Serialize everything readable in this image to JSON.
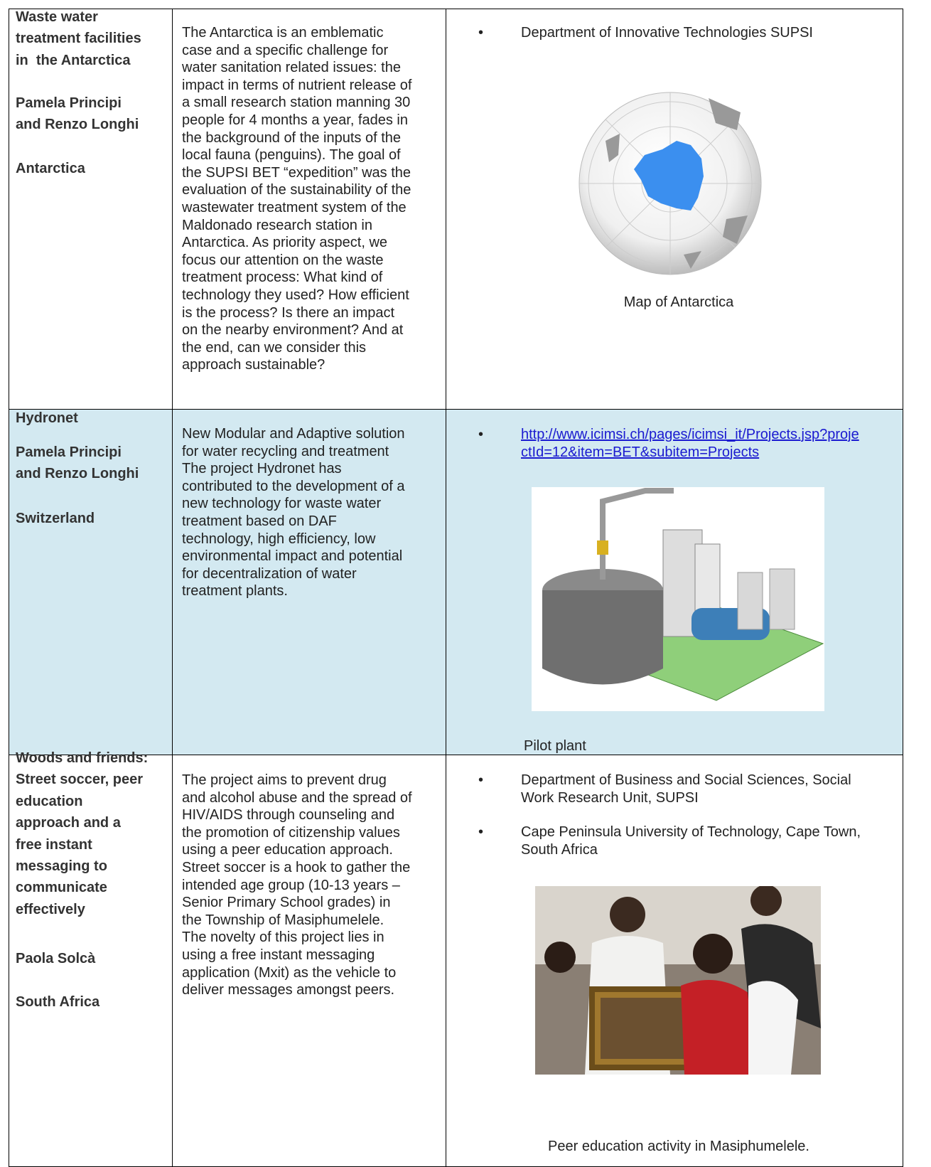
{
  "rows": [
    {
      "heading": [
        "Waste water",
        "treatment facilities",
        "in  the Antarctica"
      ],
      "authors": [
        "Pamela Principi",
        "and Renzo Longhi"
      ],
      "country": "Antarctica",
      "description": [
        "The Antarctica is an emblematic",
        "case and a specific challenge for",
        "water sanitation related issues: the",
        "impact in terms of nutrient release of",
        "a small research station manning 30",
        "people for 4 months a year, fades in",
        "the background of the inputs of the",
        "local fauna (penguins). The goal of",
        "the SUPSI BET “expedition” was the",
        "evaluation of the sustainability of the",
        "wastewater treatment system of the",
        "Maldonado research station in",
        "Antarctica. As priority aspect, we",
        "focus our attention on the waste",
        "treatment process: What kind of",
        "technology they used? How efficient",
        "is the process? Is there an impact",
        "on the nearby environment? And at",
        "the end, can we consider this",
        "approach sustainable?"
      ],
      "partners": [
        [
          "Department of Innovative Technologies SUPSI"
        ]
      ],
      "caption": "Map of Antarctica"
    },
    {
      "heading": [
        "Hydronet"
      ],
      "authors": [
        "Pamela Principi",
        "and Renzo Longhi"
      ],
      "country": "Switzerland",
      "description": [
        "New Modular and Adaptive solution",
        "for water recycling and treatment",
        "The project Hydronet has",
        "contributed to the development of a",
        "new technology for waste water",
        "treatment based on DAF",
        "technology, high efficiency, low",
        "environmental impact and potential",
        "for decentralization of water",
        "treatment plants."
      ],
      "links": [
        [
          "http://www.icimsi.ch/pages/icimsi_it/Projects.jsp?proje",
          "ctId=12&item=BET&subitem=Projects"
        ]
      ],
      "caption": "Pilot plant"
    },
    {
      "heading": [
        "Woods and friends:",
        "Street soccer, peer",
        "education",
        "approach and a",
        "free instant",
        "messaging to",
        "communicate",
        "effectively"
      ],
      "authors": [
        "Paola Solcà"
      ],
      "country": "South Africa",
      "description": [
        "The project aims to prevent drug",
        "and alcohol abuse and the spread of",
        "HIV/AIDS through counseling and",
        "the promotion of citizenship values",
        "using a peer education approach.",
        "Street soccer is a hook to gather the",
        "intended age group (10-13 years –",
        "Senior Primary School grades) in",
        "the Township of Masiphumelele.",
        "The novelty of this project lies in",
        "using a free instant messaging",
        "application (Mxit) as the vehicle to",
        "deliver messages amongst peers."
      ],
      "partners": [
        [
          "Department of Business and Social Sciences, Social",
          "Work Research Unit, SUPSI"
        ],
        [
          "Cape Peninsula University of Technology, Cape Town,",
          "South Africa"
        ]
      ],
      "caption": "Peer education activity in Masiphumelele."
    }
  ]
}
